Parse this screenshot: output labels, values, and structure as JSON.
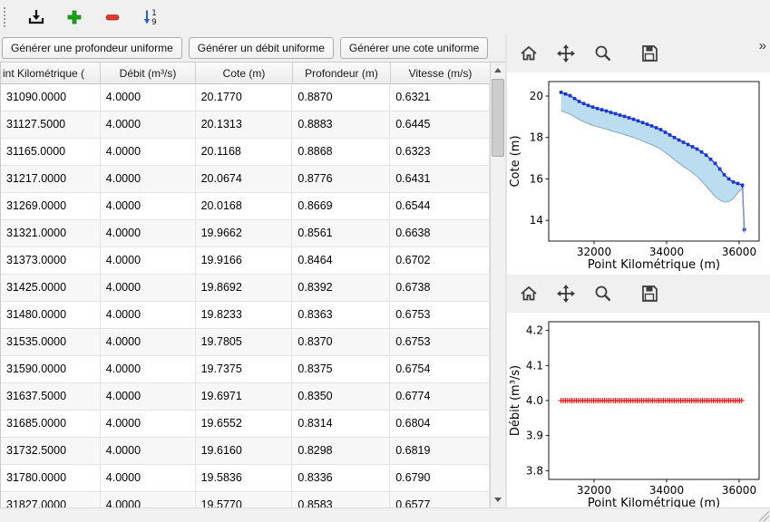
{
  "toolbar": {
    "icons": [
      {
        "name": "import-icon",
        "meaning": "save/import data"
      },
      {
        "name": "add-row-icon",
        "meaning": "add row",
        "color": "#1aa315"
      },
      {
        "name": "remove-row-icon",
        "meaning": "remove row",
        "color": "#df3a2c"
      },
      {
        "name": "sort-numeric-icon",
        "meaning": "sort 1-9 descending arrow",
        "color": "#2b63c9"
      }
    ]
  },
  "actions": {
    "gen_profondeur": "Générer une profondeur uniforme",
    "gen_debit": "Générer un débit uniforme",
    "gen_cote": "Générer une cote uniforme"
  },
  "table": {
    "columns": [
      "int Kilométrique (",
      "Débit (m³/s)",
      "Cote (m)",
      "Profondeur (m)",
      "Vitesse (m/s)"
    ],
    "rows": [
      [
        "31090.0000",
        "4.0000",
        "20.1770",
        "0.8870",
        "0.6321"
      ],
      [
        "31127.5000",
        "4.0000",
        "20.1313",
        "0.8883",
        "0.6445"
      ],
      [
        "31165.0000",
        "4.0000",
        "20.1168",
        "0.8868",
        "0.6323"
      ],
      [
        "31217.0000",
        "4.0000",
        "20.0674",
        "0.8776",
        "0.6431"
      ],
      [
        "31269.0000",
        "4.0000",
        "20.0168",
        "0.8669",
        "0.6544"
      ],
      [
        "31321.0000",
        "4.0000",
        "19.9662",
        "0.8561",
        "0.6638"
      ],
      [
        "31373.0000",
        "4.0000",
        "19.9166",
        "0.8464",
        "0.6702"
      ],
      [
        "31425.0000",
        "4.0000",
        "19.8692",
        "0.8392",
        "0.6738"
      ],
      [
        "31480.0000",
        "4.0000",
        "19.8233",
        "0.8363",
        "0.6753"
      ],
      [
        "31535.0000",
        "4.0000",
        "19.7805",
        "0.8370",
        "0.6753"
      ],
      [
        "31590.0000",
        "4.0000",
        "19.7375",
        "0.8375",
        "0.6754"
      ],
      [
        "31637.5000",
        "4.0000",
        "19.6971",
        "0.8350",
        "0.6774"
      ],
      [
        "31685.0000",
        "4.0000",
        "19.6552",
        "0.8314",
        "0.6804"
      ],
      [
        "31732.5000",
        "4.0000",
        "19.6160",
        "0.8298",
        "0.6819"
      ],
      [
        "31780.0000",
        "4.0000",
        "19.5836",
        "0.8336",
        "0.6790"
      ],
      [
        "31827.0000",
        "4.0000",
        "19.5770",
        "0.8583",
        "0.6577"
      ]
    ]
  },
  "chart_toolbar": {
    "overflow": "»",
    "icons": [
      "home-icon",
      "pan-icon",
      "zoom-icon",
      "save-figure-icon"
    ]
  },
  "chart_data": [
    {
      "type": "line",
      "title": "",
      "xlabel": "Point Kilométrique (m)",
      "ylabel": "Cote (m)",
      "xlim": [
        30750,
        36550
      ],
      "ylim": [
        13.0,
        20.7
      ],
      "xticks": [
        32000,
        34000,
        36000
      ],
      "xtick_labels": [
        "32000",
        "34000",
        "36000"
      ],
      "yticks": [
        14,
        16,
        18,
        20
      ],
      "ytick_labels": [
        "14",
        "16",
        "18",
        "20"
      ],
      "grid": false,
      "legend": "none",
      "fill": {
        "upper": "cote",
        "lower": "fond",
        "color": "#bcdcef"
      },
      "series": [
        {
          "name": "cote",
          "color": "#1a35cf",
          "marker": "square",
          "width": 1.3,
          "x": [
            31090,
            31215,
            31340,
            31465,
            31590,
            31715,
            31840,
            31965,
            32090,
            32215,
            32340,
            32465,
            32590,
            32715,
            32840,
            32965,
            33090,
            33215,
            33340,
            33465,
            33590,
            33715,
            33840,
            33965,
            34090,
            34215,
            34340,
            34465,
            34590,
            34715,
            34840,
            34965,
            35090,
            35215,
            35340,
            35465,
            35590,
            35715,
            35840,
            35965,
            36090,
            36140
          ],
          "y": [
            20.18,
            20.1,
            20.02,
            19.88,
            19.74,
            19.64,
            19.55,
            19.47,
            19.4,
            19.34,
            19.28,
            19.21,
            19.15,
            19.08,
            19.02,
            18.95,
            18.88,
            18.8,
            18.72,
            18.64,
            18.56,
            18.47,
            18.38,
            18.25,
            18.12,
            18.0,
            17.88,
            17.77,
            17.66,
            17.55,
            17.44,
            17.3,
            17.15,
            16.95,
            16.75,
            16.48,
            16.2,
            16.0,
            15.85,
            15.78,
            15.7,
            13.55
          ]
        },
        {
          "name": "fond",
          "color": "#8aa5bd",
          "width": 1,
          "x": [
            31090,
            31215,
            31340,
            31465,
            31590,
            31715,
            31840,
            31965,
            32090,
            32215,
            32340,
            32465,
            32590,
            32715,
            32840,
            32965,
            33090,
            33215,
            33340,
            33465,
            33590,
            33715,
            33840,
            33965,
            34090,
            34215,
            34340,
            34465,
            34590,
            34715,
            34840,
            34965,
            35090,
            35215,
            35340,
            35465,
            35590,
            35715,
            35840,
            35965,
            36090,
            36140
          ],
          "y": [
            19.29,
            19.21,
            19.13,
            19.0,
            18.86,
            18.76,
            18.67,
            18.59,
            18.52,
            18.46,
            18.4,
            18.33,
            18.27,
            18.2,
            18.14,
            18.07,
            18.0,
            17.92,
            17.83,
            17.74,
            17.65,
            17.55,
            17.44,
            17.28,
            17.1,
            16.93,
            16.76,
            16.6,
            16.45,
            16.3,
            16.12,
            15.9,
            15.65,
            15.4,
            15.15,
            14.98,
            14.88,
            14.9,
            15.05,
            15.35,
            15.52,
            13.4
          ]
        }
      ]
    },
    {
      "type": "line",
      "title": "",
      "xlabel": "Point Kilométrique (m)",
      "ylabel": "Débit (m³/s)",
      "xlim": [
        30750,
        36550
      ],
      "ylim": [
        3.775,
        4.225
      ],
      "xticks": [
        32000,
        34000,
        36000
      ],
      "xtick_labels": [
        "32000",
        "34000",
        "36000"
      ],
      "yticks": [
        3.8,
        3.9,
        4.0,
        4.1,
        4.2
      ],
      "ytick_labels": [
        "3.8",
        "3.9",
        "4.0",
        "4.1",
        "4.2"
      ],
      "grid": false,
      "legend": "none",
      "series": [
        {
          "name": "debit",
          "color": "#e51212",
          "marker": "plus",
          "marker_step": 60,
          "width": 1.2,
          "x": [
            31090,
            36090
          ],
          "y": [
            4.0,
            4.0
          ]
        }
      ]
    }
  ]
}
